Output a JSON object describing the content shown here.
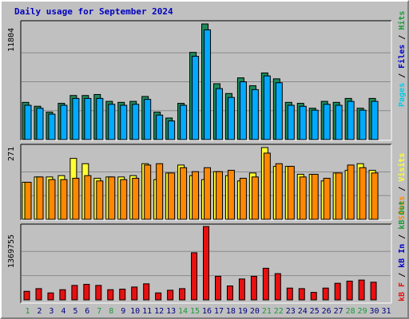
{
  "title": "Daily usage for September 2024",
  "colors": {
    "hits": "#1e8a5a",
    "files": "#00aaff",
    "pages": "#00ccee",
    "sites": "#ff8800",
    "visits": "#ffff33",
    "kb_in": "#0000cc",
    "kb_out": "#008844",
    "kb_f": "#e81010",
    "panel_bg": "#c0c0c0",
    "day_weekend": "#1a9a3a",
    "day_weekday": "#000080"
  },
  "chart_data": [
    {
      "type": "bar",
      "panel": "hits-files-pages",
      "ymax_label": "11804",
      "ylim": [
        0,
        11804
      ],
      "legend": [
        {
          "label": "Pages",
          "color": "#00ccee"
        },
        {
          "label": "Files",
          "color": "#0000cc"
        },
        {
          "label": "Hits",
          "color": "#1a9a3a"
        }
      ],
      "categories": [
        "1",
        "2",
        "3",
        "4",
        "5",
        "6",
        "7",
        "8",
        "9",
        "10",
        "11",
        "12",
        "13",
        "14",
        "15",
        "16",
        "17",
        "18",
        "19",
        "20",
        "21",
        "22",
        "23",
        "24",
        "25",
        "26",
        "27",
        "28",
        "29",
        "30",
        "31"
      ],
      "series": [
        {
          "name": "Hits",
          "values": [
            3800,
            3400,
            2800,
            3700,
            4500,
            4500,
            4600,
            3900,
            3800,
            3900,
            4400,
            2800,
            2200,
            3700,
            8900,
            11804,
            5700,
            4700,
            6300,
            5500,
            6800,
            6200,
            3800,
            3700,
            3200,
            3900,
            3800,
            4200,
            3200,
            4200,
            0
          ]
        },
        {
          "name": "Files",
          "values": [
            3500,
            3200,
            2600,
            3500,
            4200,
            4200,
            4200,
            3600,
            3500,
            3600,
            4100,
            2500,
            1900,
            3500,
            8500,
            11200,
            5200,
            4300,
            5900,
            5100,
            6500,
            5800,
            3500,
            3400,
            3000,
            3600,
            3500,
            3900,
            3000,
            3900,
            0
          ]
        }
      ]
    },
    {
      "type": "bar",
      "panel": "visits-sites",
      "ymax_label": "271",
      "ylim": [
        0,
        271
      ],
      "legend": [
        {
          "label": "Sites",
          "color": "#ff8800"
        },
        {
          "label": "Visits",
          "color": "#ffff33"
        }
      ],
      "categories": [
        "1",
        "2",
        "3",
        "4",
        "5",
        "6",
        "7",
        "8",
        "9",
        "10",
        "11",
        "12",
        "13",
        "14",
        "15",
        "16",
        "17",
        "18",
        "19",
        "20",
        "21",
        "22",
        "23",
        "24",
        "25",
        "26",
        "27",
        "28",
        "29",
        "30",
        "31"
      ],
      "series": [
        {
          "name": "Visits",
          "values": [
            140,
            160,
            160,
            165,
            230,
            210,
            155,
            160,
            160,
            165,
            210,
            150,
            175,
            205,
            165,
            150,
            180,
            165,
            145,
            175,
            271,
            200,
            200,
            170,
            170,
            145,
            175,
            185,
            210,
            185,
            0
          ]
        },
        {
          "name": "Sites",
          "values": [
            140,
            160,
            150,
            150,
            155,
            165,
            145,
            160,
            150,
            155,
            205,
            210,
            175,
            195,
            180,
            195,
            180,
            185,
            155,
            160,
            250,
            210,
            200,
            160,
            170,
            155,
            175,
            205,
            195,
            175,
            0
          ]
        }
      ]
    },
    {
      "type": "bar",
      "panel": "kbytes",
      "ymax_label": "1369755",
      "ylim": [
        0,
        1369755
      ],
      "legend": [
        {
          "label": "kB F",
          "color": "#e81010"
        },
        {
          "label": "kB In",
          "color": "#0000cc"
        },
        {
          "label": "kB Out",
          "color": "#1a9a3a"
        }
      ],
      "categories": [
        "1",
        "2",
        "3",
        "4",
        "5",
        "6",
        "7",
        "8",
        "9",
        "10",
        "11",
        "12",
        "13",
        "14",
        "15",
        "16",
        "17",
        "18",
        "19",
        "20",
        "21",
        "22",
        "23",
        "24",
        "25",
        "26",
        "27",
        "28",
        "29",
        "30",
        "31"
      ],
      "series": [
        {
          "name": "kB F",
          "values": [
            160000,
            210000,
            130000,
            190000,
            270000,
            290000,
            270000,
            190000,
            200000,
            240000,
            300000,
            130000,
            180000,
            210000,
            880000,
            1369755,
            440000,
            260000,
            390000,
            440000,
            590000,
            490000,
            220000,
            210000,
            140000,
            220000,
            310000,
            350000,
            370000,
            330000,
            0
          ]
        }
      ]
    }
  ],
  "days": [
    {
      "label": "1",
      "weekend": true
    },
    {
      "label": "2",
      "weekend": false
    },
    {
      "label": "3",
      "weekend": false
    },
    {
      "label": "4",
      "weekend": false
    },
    {
      "label": "5",
      "weekend": false
    },
    {
      "label": "6",
      "weekend": false
    },
    {
      "label": "7",
      "weekend": true
    },
    {
      "label": "8",
      "weekend": true
    },
    {
      "label": "9",
      "weekend": false
    },
    {
      "label": "10",
      "weekend": false
    },
    {
      "label": "11",
      "weekend": false
    },
    {
      "label": "12",
      "weekend": false
    },
    {
      "label": "13",
      "weekend": false
    },
    {
      "label": "14",
      "weekend": true
    },
    {
      "label": "15",
      "weekend": true
    },
    {
      "label": "16",
      "weekend": false
    },
    {
      "label": "17",
      "weekend": false
    },
    {
      "label": "18",
      "weekend": false
    },
    {
      "label": "19",
      "weekend": false
    },
    {
      "label": "20",
      "weekend": false
    },
    {
      "label": "21",
      "weekend": true
    },
    {
      "label": "22",
      "weekend": true
    },
    {
      "label": "23",
      "weekend": false
    },
    {
      "label": "24",
      "weekend": false
    },
    {
      "label": "25",
      "weekend": false
    },
    {
      "label": "26",
      "weekend": false
    },
    {
      "label": "27",
      "weekend": false
    },
    {
      "label": "28",
      "weekend": true
    },
    {
      "label": "29",
      "weekend": true
    },
    {
      "label": "30",
      "weekend": false
    },
    {
      "label": "31",
      "weekend": false
    }
  ]
}
